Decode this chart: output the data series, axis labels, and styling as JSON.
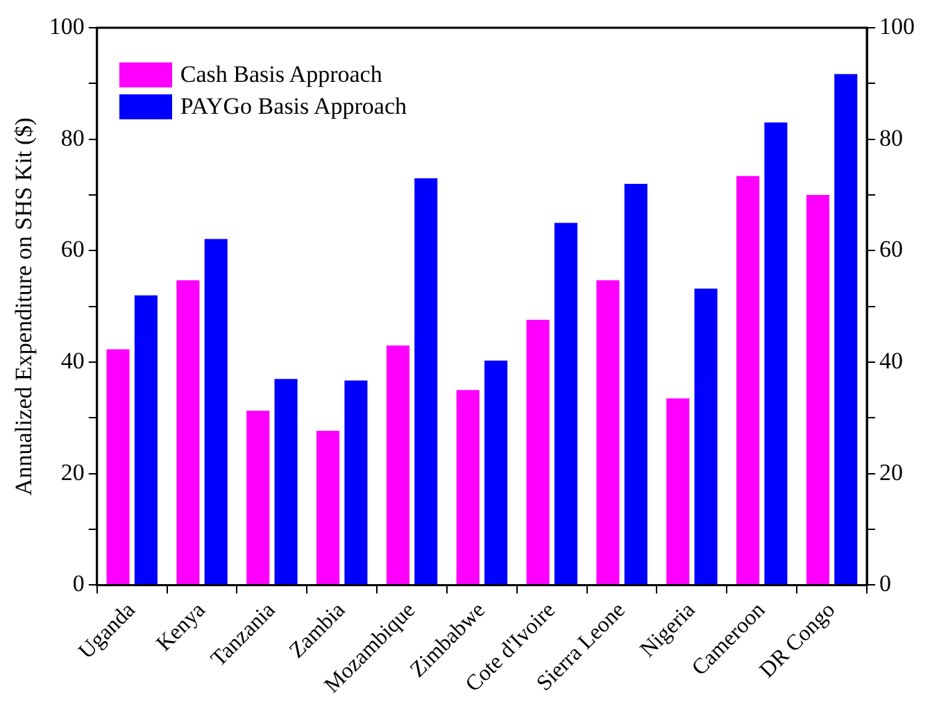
{
  "chart_data": {
    "type": "bar",
    "ylabel": "Annualized Expenditure on SHS Kit ($)",
    "categories": [
      "Uganda",
      "Kenya",
      "Tanzania",
      "Zambia",
      "Mozambique",
      "Zimbabwe",
      "Cote d'Ivoire",
      "Sierra Leone",
      "Nigeria",
      "Cameroon",
      "DR Congo"
    ],
    "series": [
      {
        "name": "Cash Basis Approach",
        "color": "#ff00ff",
        "values": [
          42.3,
          54.7,
          31.3,
          27.7,
          43,
          35,
          47.6,
          54.7,
          33.5,
          73.4,
          70
        ]
      },
      {
        "name": "PAYGo Basis Approach",
        "color": "#0000ff",
        "values": [
          52,
          62.1,
          37,
          36.7,
          73,
          40.3,
          65,
          72,
          53.2,
          83,
          91.7
        ]
      }
    ],
    "ylim": [
      0,
      100
    ],
    "yticks": [
      0,
      {
        "value": 10,
        "label": null
      },
      20,
      {
        "value": 30,
        "label": null
      },
      40,
      {
        "value": 50,
        "label": null
      },
      60,
      {
        "value": 70,
        "label": null
      },
      80,
      {
        "value": 90,
        "label": null
      },
      100
    ],
    "y2lim": [
      0,
      100
    ],
    "y2ticks": [
      0,
      {
        "value": 10,
        "label": null
      },
      20,
      {
        "value": 30,
        "label": null
      },
      40,
      {
        "value": 50,
        "label": null
      },
      60,
      {
        "value": 70,
        "label": null
      },
      80,
      {
        "value": 90,
        "label": null
      },
      100
    ],
    "grid": false,
    "legend": "top left"
  }
}
